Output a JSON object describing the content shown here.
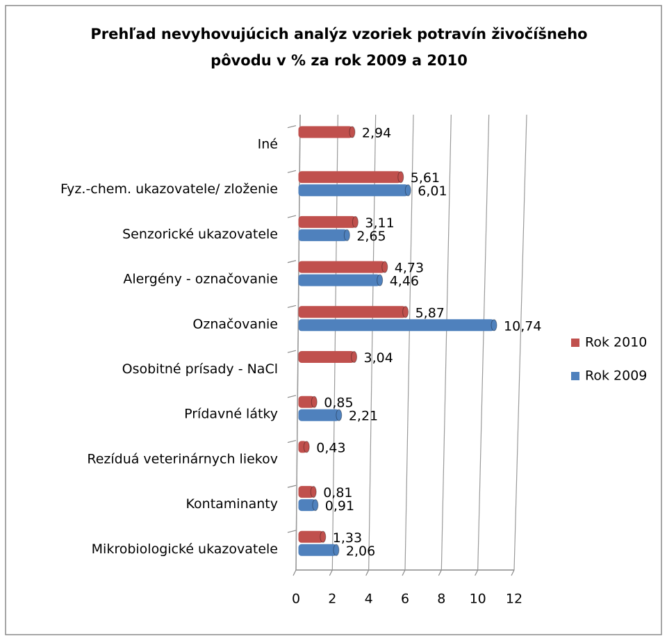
{
  "chart_data": {
    "type": "bar",
    "orientation": "horizontal",
    "title": [
      "Prehľad nevyhovujúcich analýz vzoriek potravín živočíšneho",
      "pôvodu v % za rok 2009 a 2010"
    ],
    "categories": [
      "Iné",
      "Fyz.-chem. ukazovatele/ zloženie",
      "Senzorické ukazovatele",
      "Alergény - označovanie",
      "Označovanie",
      "Osobitné prísady - NaCl",
      "Prídavné látky",
      "Rezíduá veterinárnych liekov",
      "Kontaminanty",
      "Mikrobiologické ukazovatele"
    ],
    "series": [
      {
        "name": "Rok 2010",
        "color": "#c0504d",
        "values": [
          2.94,
          5.61,
          3.11,
          4.73,
          5.87,
          3.04,
          0.85,
          0.43,
          0.81,
          1.33
        ],
        "value_labels": [
          "2,94",
          "5,61",
          "3,11",
          "4,73",
          "5,87",
          "3,04",
          "0,85",
          "0,43",
          "0,81",
          "1,33"
        ]
      },
      {
        "name": "Rok 2009",
        "color": "#4f81bd",
        "values": [
          null,
          6.01,
          2.65,
          4.46,
          10.74,
          null,
          2.21,
          null,
          0.91,
          2.06
        ],
        "value_labels": [
          null,
          "6,01",
          "2,65",
          "4,46",
          "10,74",
          null,
          "2,21",
          null,
          "0,91",
          "2,06"
        ]
      }
    ],
    "xlim": [
      0,
      12
    ],
    "xticks": [
      0,
      2,
      4,
      6,
      8,
      10,
      12
    ],
    "grid": true,
    "legend": "right"
  }
}
